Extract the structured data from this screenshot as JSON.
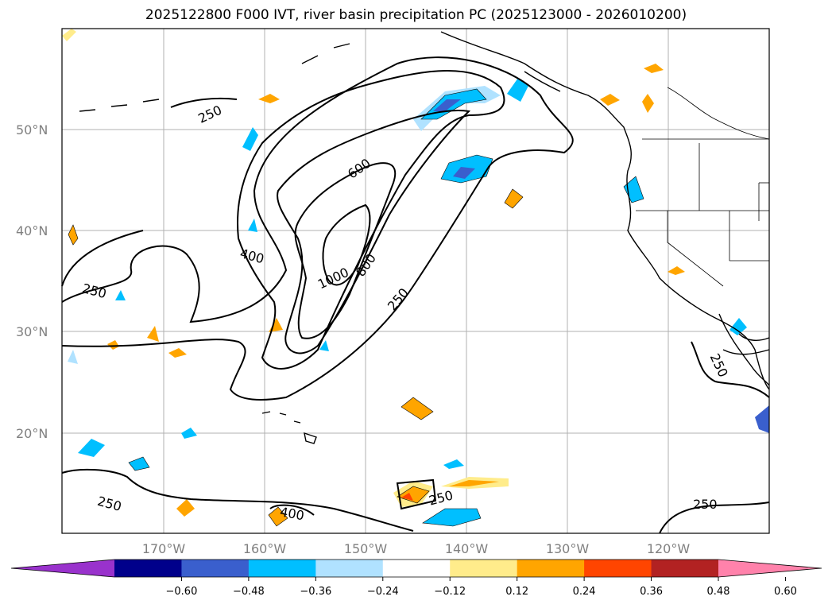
{
  "title": "2025122800 F000 IVT, river basin precipitation PC (2025123000 - 2026010200)",
  "lat_labels": [
    "50°N",
    "40°N",
    "30°N",
    "20°N"
  ],
  "lon_labels": [
    "170°W",
    "160°W",
    "150°W",
    "140°W",
    "130°W",
    "120°W"
  ],
  "contour_labels": [
    "250",
    "250",
    "250",
    "250",
    "250",
    "250",
    "400",
    "400",
    "600",
    "800",
    "1000"
  ],
  "colorbar": {
    "ticks": [
      "−0.60",
      "−0.48",
      "−0.36",
      "−0.24",
      "−0.12",
      "0.12",
      "0.24",
      "0.36",
      "0.48",
      "0.60"
    ],
    "colors": [
      "#9932cc",
      "#00008b",
      "#3a5fcd",
      "#00bfff",
      "#b0e2ff",
      "#ffffff",
      "#ffec8b",
      "#ffa500",
      "#ff4500",
      "#b22222",
      "#ff82ab"
    ]
  },
  "map": {
    "lon_range": [
      -180,
      -110
    ],
    "lat_range": [
      10,
      60
    ],
    "ivt_contour_levels": [
      250,
      400,
      600,
      800,
      1000
    ],
    "gridlines": true
  }
}
